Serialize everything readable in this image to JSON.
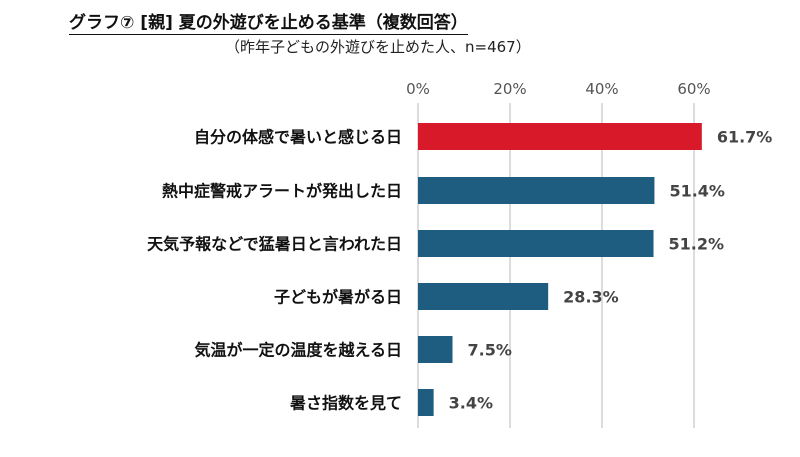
{
  "header": {
    "title": "グラフ⑦ [親] 夏の外遊びを止める基準（複数回答）",
    "subtitle": "（昨年子どもの外遊びを止めた人、n=467）"
  },
  "chart_data": {
    "type": "bar",
    "orientation": "horizontal",
    "categories": [
      "自分の体感で暑いと感じる日",
      "熱中症警戒アラートが発出した日",
      "天気予報などで猛暑日と言われた日",
      "子どもが暑がる日",
      "気温が一定の温度を越える日",
      "暑さ指数を見て"
    ],
    "values": [
      61.7,
      51.4,
      51.2,
      28.3,
      7.5,
      3.4
    ],
    "value_labels": [
      "61.7%",
      "51.4%",
      "51.2%",
      "28.3%",
      "7.5%",
      "3.4%"
    ],
    "xlim": [
      0,
      60
    ],
    "ticks": [
      0,
      20,
      40,
      60
    ],
    "tick_labels": [
      "0%",
      "20%",
      "40%",
      "60%"
    ],
    "grid": true,
    "colors": {
      "highlight": "#d7192a",
      "bar": "#1f5d80",
      "grid": "#d0d0d0"
    },
    "highlight_index": 0
  }
}
